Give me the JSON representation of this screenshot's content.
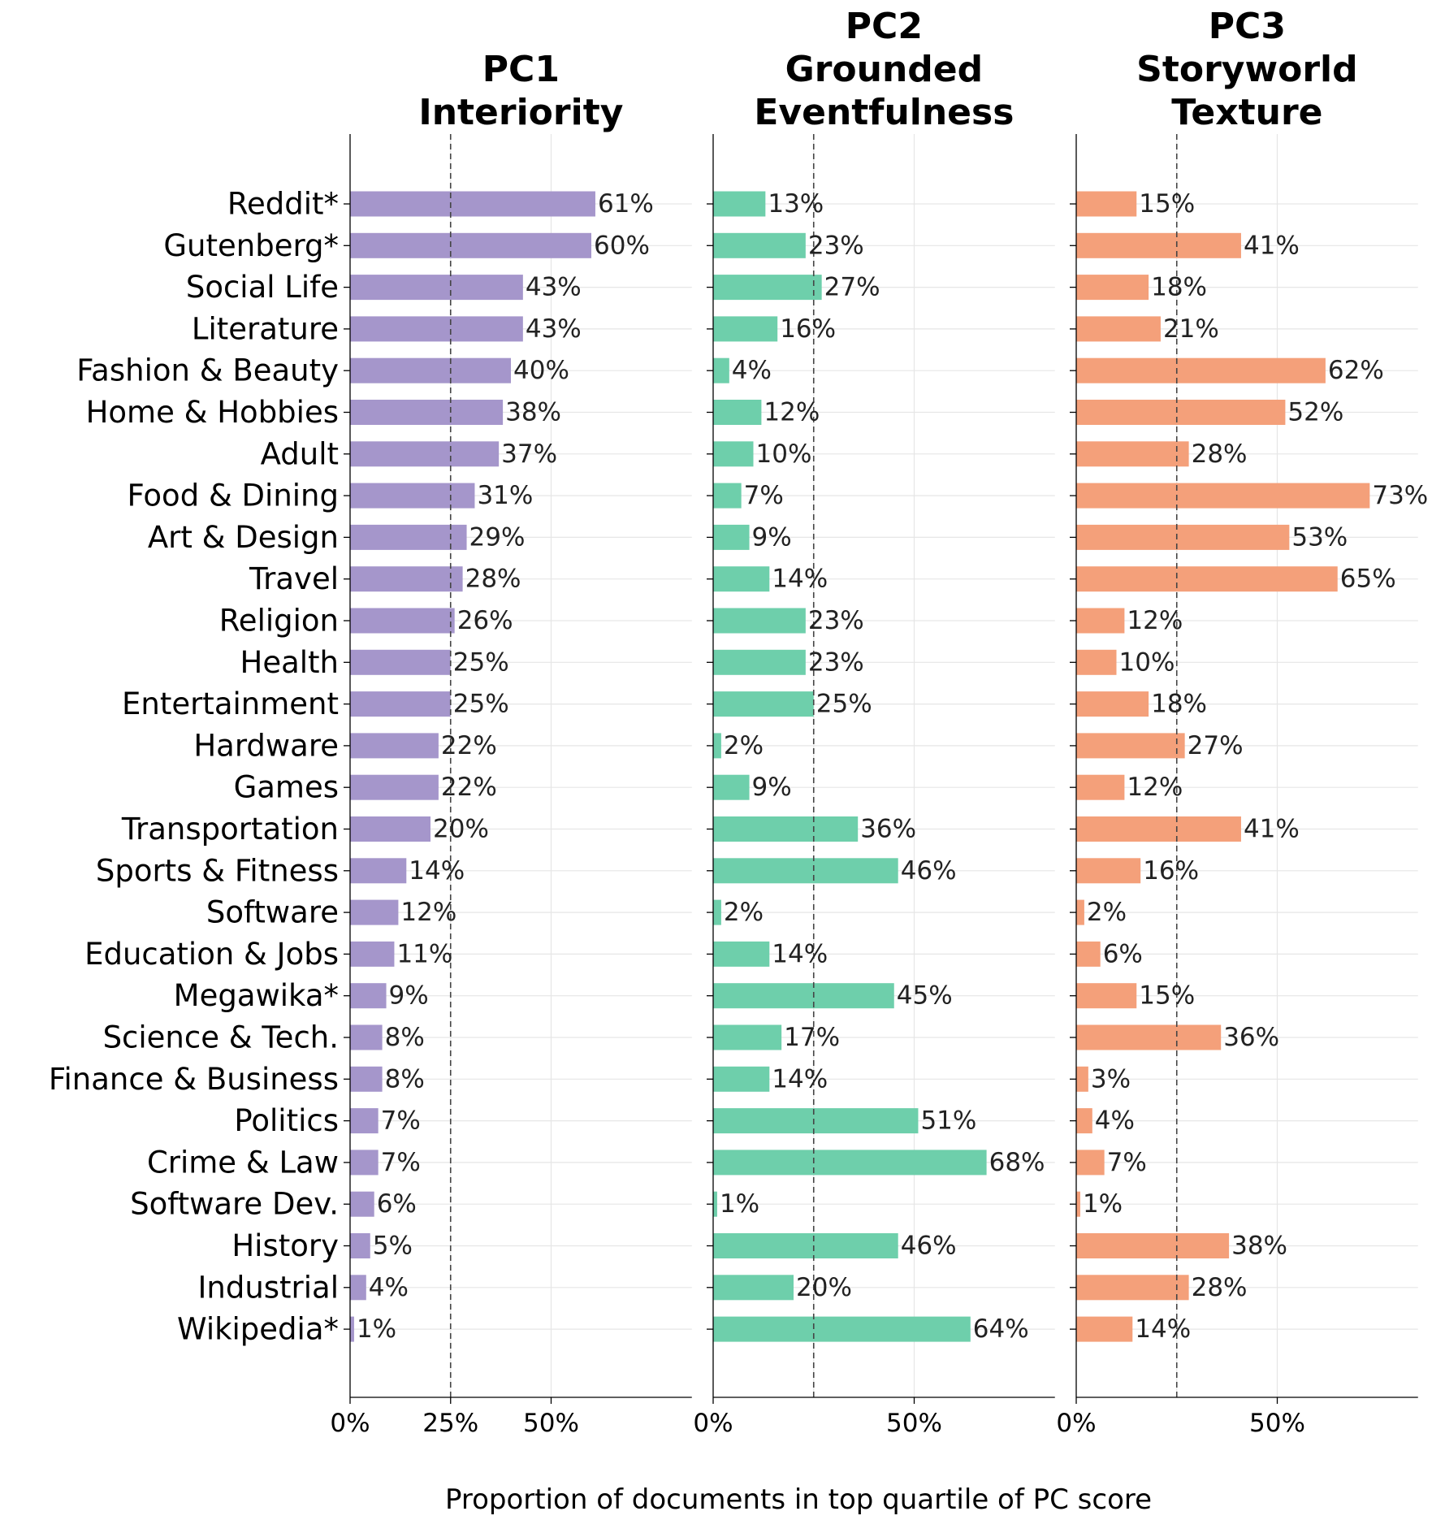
{
  "chart_data": {
    "type": "bar",
    "orientation": "horizontal",
    "xlabel": "Proportion of documents in top quartile of PC score",
    "reference_line": 25,
    "xlim": [
      0,
      85
    ],
    "xticks": [
      0,
      25,
      50
    ],
    "grid": true,
    "categories": [
      "Reddit*",
      "Gutenberg*",
      "Social Life",
      "Literature",
      "Fashion & Beauty",
      "Home & Hobbies",
      "Adult",
      "Food & Dining",
      "Art & Design",
      "Travel",
      "Religion",
      "Health",
      "Entertainment",
      "Hardware",
      "Games",
      "Transportation",
      "Sports & Fitness",
      "Software",
      "Education & Jobs",
      "Megawika*",
      "Science & Tech.",
      "Finance & Business",
      "Politics",
      "Crime & Law",
      "Software Dev.",
      "History",
      "Industrial",
      "Wikipedia*"
    ],
    "panels": [
      {
        "title_lines": [
          "PC1",
          "Interiority"
        ],
        "color": "#a596cb",
        "tick_labels": [
          "0%",
          "25%",
          "50%"
        ],
        "value_labels": [
          "61%",
          "60%",
          "43%",
          "43%",
          "40%",
          "38%",
          "37%",
          "31%",
          "29%",
          "28%",
          "26%",
          "25%",
          "25%",
          "22%",
          "22%",
          "20%",
          "14%",
          "12%",
          "11%",
          "9%",
          "8%",
          "8%",
          "7%",
          "7%",
          "6%",
          "5%",
          "4%",
          "1%"
        ],
        "values": [
          61,
          60,
          43,
          43,
          40,
          38,
          37,
          31,
          29,
          28,
          26,
          25,
          25,
          22,
          22,
          20,
          14,
          12,
          11,
          9,
          8,
          8,
          7,
          7,
          6,
          5,
          4,
          1
        ]
      },
      {
        "title_lines": [
          "PC2",
          "Grounded",
          "Eventfulness"
        ],
        "color": "#6ecfab",
        "tick_labels": [
          "0%",
          "50%"
        ],
        "value_labels": [
          "13%",
          "23%",
          "27%",
          "16%",
          "4%",
          "12%",
          "10%",
          "7%",
          "9%",
          "14%",
          "23%",
          "23%",
          "25%",
          "2%",
          "9%",
          "36%",
          "46%",
          "2%",
          "14%",
          "45%",
          "17%",
          "14%",
          "51%",
          "68%",
          "1%",
          "46%",
          "20%",
          "64%"
        ],
        "values": [
          13,
          23,
          27,
          16,
          4,
          12,
          10,
          7,
          9,
          14,
          23,
          23,
          25,
          2,
          9,
          36,
          46,
          2,
          14,
          45,
          17,
          14,
          51,
          68,
          1,
          46,
          20,
          64
        ]
      },
      {
        "title_lines": [
          "PC3",
          "Storyworld",
          "Texture"
        ],
        "color": "#f4a07a",
        "tick_labels": [
          "0%",
          "50%"
        ],
        "value_labels": [
          "15%",
          "41%",
          "18%",
          "21%",
          "62%",
          "52%",
          "28%",
          "73%",
          "53%",
          "65%",
          "12%",
          "10%",
          "18%",
          "27%",
          "12%",
          "41%",
          "16%",
          "2%",
          "6%",
          "15%",
          "36%",
          "3%",
          "4%",
          "7%",
          "1%",
          "38%",
          "28%",
          "14%"
        ],
        "values": [
          15,
          41,
          18,
          21,
          62,
          52,
          28,
          73,
          53,
          65,
          12,
          10,
          18,
          27,
          12,
          41,
          16,
          2,
          6,
          15,
          36,
          3,
          4,
          7,
          1,
          38,
          28,
          14
        ]
      }
    ]
  }
}
